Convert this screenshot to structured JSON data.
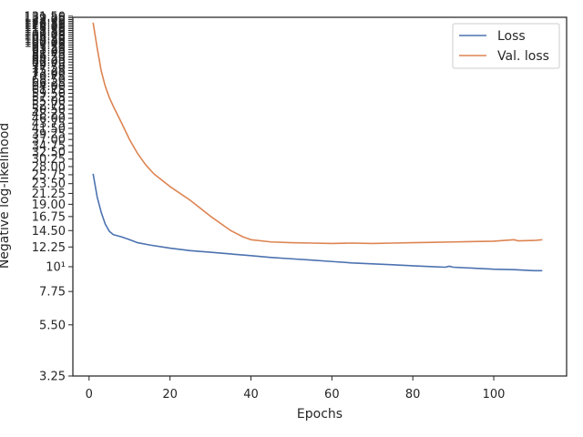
{
  "chart_data": {
    "type": "line",
    "title": "",
    "xlabel": "Epochs",
    "ylabel": "Negative log-likelihood",
    "yscale": "log",
    "xlim": [
      -4,
      118
    ],
    "ylim": [
      3.25,
      130
    ],
    "grid": false,
    "legend_position": "top-right",
    "x_ticks": [
      0,
      20,
      40,
      60,
      80,
      100
    ],
    "y_ticks": [
      {
        "value": 3.25,
        "label": "3.25"
      },
      {
        "value": 5.5,
        "label": "5.50"
      },
      {
        "value": 7.75,
        "label": "7.75"
      },
      {
        "value": 10,
        "label": "10¹"
      },
      {
        "value": 12.25,
        "label": "12.25"
      },
      {
        "value": 14.5,
        "label": "14.50"
      },
      {
        "value": 16.75,
        "label": "16.75"
      },
      {
        "value": 19,
        "label": "19.00"
      },
      {
        "value": 21.25,
        "label": "21.25"
      },
      {
        "value": 23.5,
        "label": "23.50"
      },
      {
        "value": 25.75,
        "label": "25.75"
      },
      {
        "value": 28,
        "label": "28.00"
      },
      {
        "value": 30.25,
        "label": "30.25"
      },
      {
        "value": 32.5,
        "label": "32.50"
      },
      {
        "value": 34.75,
        "label": "34.75"
      },
      {
        "value": 37,
        "label": "37.00"
      },
      {
        "value": 39.25,
        "label": "39.25"
      },
      {
        "value": 41.5,
        "label": "41.50"
      },
      {
        "value": 43.75,
        "label": "43.75"
      },
      {
        "value": 46,
        "label": "46.00"
      },
      {
        "value": 48.25,
        "label": "48.25"
      },
      {
        "value": 50.5,
        "label": "50.50"
      },
      {
        "value": 52.75,
        "label": "52.75"
      },
      {
        "value": 55,
        "label": "55.00"
      },
      {
        "value": 57.25,
        "label": "57.25"
      },
      {
        "value": 59.5,
        "label": "59.50"
      },
      {
        "value": 61.75,
        "label": "61.75"
      },
      {
        "value": 64,
        "label": "64.00"
      },
      {
        "value": 66.25,
        "label": "66.25"
      },
      {
        "value": 68.5,
        "label": "68.50"
      },
      {
        "value": 70.75,
        "label": "70.75"
      },
      {
        "value": 73,
        "label": "73.00"
      },
      {
        "value": 75.25,
        "label": "75.25"
      },
      {
        "value": 77.5,
        "label": "77.50"
      },
      {
        "value": 79.75,
        "label": "79.75"
      },
      {
        "value": 82,
        "label": "82.00"
      },
      {
        "value": 84.25,
        "label": "84.25"
      },
      {
        "value": 86.5,
        "label": "86.50"
      },
      {
        "value": 88.75,
        "label": "88.75"
      },
      {
        "value": 91,
        "label": "91.00"
      },
      {
        "value": 93.25,
        "label": "93.25"
      },
      {
        "value": 95.5,
        "label": "95.50"
      },
      {
        "value": 97.75,
        "label": "97.75"
      },
      {
        "value": 100,
        "label": "100.00"
      },
      {
        "value": 102.25,
        "label": "102.25"
      },
      {
        "value": 104.5,
        "label": "104.50"
      },
      {
        "value": 106.75,
        "label": "106.75"
      },
      {
        "value": 109,
        "label": "109.00"
      },
      {
        "value": 111.25,
        "label": "111.25"
      },
      {
        "value": 113.5,
        "label": "113.50"
      },
      {
        "value": 115.75,
        "label": "115.75"
      },
      {
        "value": 118,
        "label": "118.00"
      },
      {
        "value": 120.25,
        "label": "120.25"
      },
      {
        "value": 122.5,
        "label": "122.50"
      },
      {
        "value": 124.75,
        "label": "124.75"
      },
      {
        "value": 127,
        "label": "127.00"
      },
      {
        "value": 129.25,
        "label": "129.25"
      },
      {
        "value": 131.5,
        "label": "131.50"
      }
    ],
    "series": [
      {
        "name": "Loss",
        "color": "#4c72b0",
        "points": [
          [
            1,
            26.0
          ],
          [
            2,
            20.5
          ],
          [
            3,
            17.5
          ],
          [
            4,
            15.5
          ],
          [
            5,
            14.4
          ],
          [
            6,
            13.9
          ],
          [
            8,
            13.6
          ],
          [
            10,
            13.2
          ],
          [
            12,
            12.8
          ],
          [
            15,
            12.5
          ],
          [
            20,
            12.1
          ],
          [
            25,
            11.8
          ],
          [
            30,
            11.6
          ],
          [
            35,
            11.4
          ],
          [
            40,
            11.2
          ],
          [
            45,
            11.0
          ],
          [
            50,
            10.85
          ],
          [
            55,
            10.7
          ],
          [
            60,
            10.55
          ],
          [
            65,
            10.4
          ],
          [
            70,
            10.3
          ],
          [
            75,
            10.2
          ],
          [
            80,
            10.1
          ],
          [
            85,
            10.0
          ],
          [
            88,
            9.95
          ],
          [
            89,
            10.05
          ],
          [
            90,
            9.95
          ],
          [
            95,
            9.85
          ],
          [
            100,
            9.75
          ],
          [
            105,
            9.7
          ],
          [
            110,
            9.6
          ],
          [
            112,
            9.6
          ]
        ]
      },
      {
        "name": "Val. loss",
        "color": "#dd8452",
        "points": [
          [
            1,
            123.0
          ],
          [
            2,
            95.0
          ],
          [
            3,
            75.0
          ],
          [
            4,
            64.0
          ],
          [
            5,
            57.0
          ],
          [
            6,
            52.0
          ],
          [
            8,
            44.0
          ],
          [
            10,
            37.0
          ],
          [
            12,
            32.0
          ],
          [
            14,
            28.5
          ],
          [
            16,
            26.0
          ],
          [
            20,
            22.8
          ],
          [
            25,
            19.8
          ],
          [
            30,
            16.8
          ],
          [
            35,
            14.5
          ],
          [
            38,
            13.6
          ],
          [
            40,
            13.2
          ],
          [
            45,
            12.9
          ],
          [
            50,
            12.8
          ],
          [
            55,
            12.75
          ],
          [
            60,
            12.7
          ],
          [
            65,
            12.75
          ],
          [
            70,
            12.7
          ],
          [
            75,
            12.75
          ],
          [
            80,
            12.8
          ],
          [
            85,
            12.85
          ],
          [
            90,
            12.9
          ],
          [
            95,
            12.95
          ],
          [
            100,
            13.0
          ],
          [
            105,
            13.2
          ],
          [
            106,
            13.05
          ],
          [
            110,
            13.1
          ],
          [
            112,
            13.2
          ]
        ]
      }
    ]
  }
}
